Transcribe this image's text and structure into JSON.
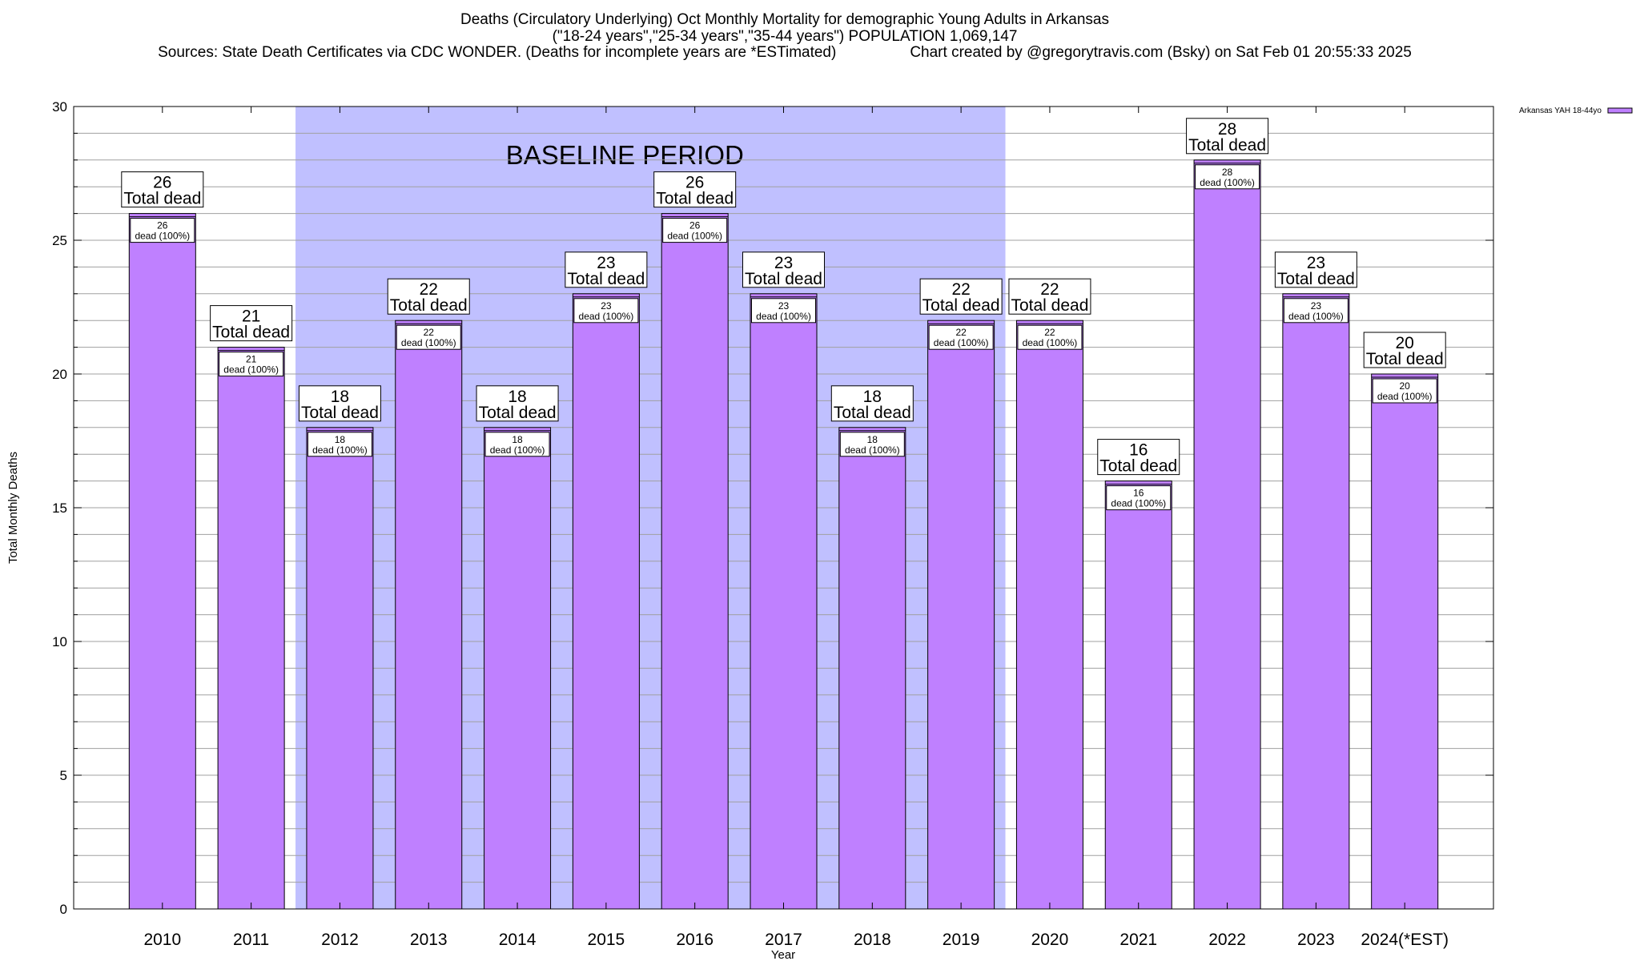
{
  "header": {
    "title_line1": "Deaths (Circulatory Underlying) Oct Monthly Mortality for demographic Young Adults in Arkansas",
    "title_line2": "(\"18-24 years\",\"25-34 years\",\"35-44 years\") POPULATION 1,069,147",
    "sources": "Sources: State Death Certificates via CDC WONDER. (Deaths for incomplete years are *ESTimated)",
    "credit": "Chart created by @gregorytravis.com (Bsky) on Sat Feb 01 20:55:33 2025"
  },
  "colors": {
    "bar_fill": "#bf80ff",
    "bar_stroke": "#000000",
    "baseline_fill": "#c0c0ff",
    "grid": "#a0a0a0",
    "label_box_fill": "#ffffff"
  },
  "chart_data": {
    "type": "bar",
    "xlabel": "Year",
    "ylabel": "Total Monthly Deaths",
    "ylim": [
      0,
      30
    ],
    "yticks": [
      0,
      5,
      10,
      15,
      20,
      25,
      30
    ],
    "grid": true,
    "legend_placement": "top-right",
    "categories": [
      "2010",
      "2011",
      "2012",
      "2013",
      "2014",
      "2015",
      "2016",
      "2017",
      "2018",
      "2019",
      "2020",
      "2021",
      "2022",
      "2023",
      "2024(*EST)"
    ],
    "series": [
      {
        "name": "Arkansas YAH 18-44yo",
        "values": [
          26,
          21,
          18,
          22,
          18,
          23,
          26,
          23,
          18,
          22,
          22,
          16,
          28,
          23,
          20
        ]
      }
    ],
    "total_label_suffix": "Total dead",
    "inner_label_suffix": "dead (100%)",
    "baseline_period": {
      "label": "BASELINE PERIOD",
      "from": "2012",
      "to": "2019"
    }
  }
}
